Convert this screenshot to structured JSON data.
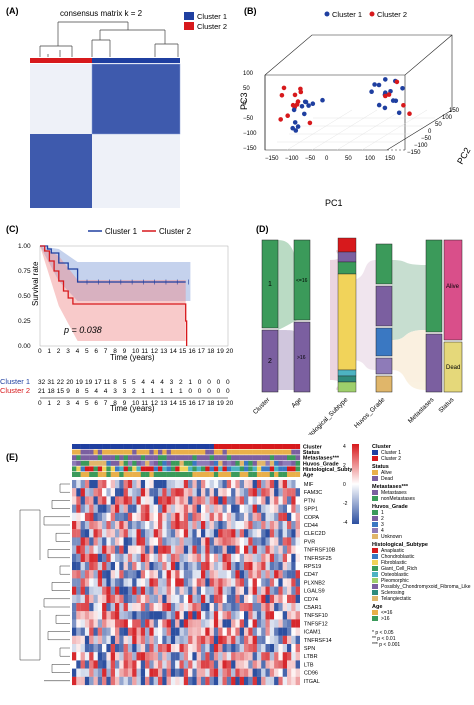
{
  "panels": {
    "a": {
      "letter": "(A)",
      "title": "consensus matrix k = 2",
      "legend": [
        "Cluster 1",
        "Cluster 2"
      ]
    },
    "b": {
      "letter": "(B)",
      "legend": [
        "Cluster 1",
        "Cluster 2"
      ],
      "axes": {
        "pc1": "PC1",
        "pc2": "PC2",
        "pc3": "PC3"
      },
      "pc1_ticks": [
        "−150",
        "−100",
        "−50",
        "0",
        "50",
        "100",
        "150"
      ],
      "pc2_ticks": [
        "−150",
        "−100",
        "−50",
        "0",
        "50",
        "100",
        "150"
      ],
      "pc3_ticks": [
        "−150",
        "−100",
        "−50",
        "0",
        "50",
        "100"
      ]
    },
    "c": {
      "letter": "(C)",
      "legend": [
        "Cluster 1",
        "Cluster 2"
      ],
      "pvalue_label": "p = 0.038",
      "ylabel": "Survival rate",
      "xlabel": "Time (years)",
      "yticks": [
        "0.00",
        "0.25",
        "0.50",
        "0.75",
        "1.00"
      ],
      "xticks": [
        "0",
        "1",
        "2",
        "3",
        "4",
        "5",
        "6",
        "7",
        "8",
        "9",
        "10",
        "11",
        "12",
        "13",
        "14",
        "15",
        "16",
        "17",
        "18",
        "19",
        "20"
      ],
      "risk_table": {
        "row_labels": [
          "Cluster 1",
          "Cluster 2"
        ],
        "cluster1": [
          "32",
          "31",
          "22",
          "20",
          "19",
          "19",
          "17",
          "11",
          "8",
          "5",
          "5",
          "4",
          "4",
          "4",
          "3",
          "2",
          "1",
          "0",
          "0",
          "0",
          "0"
        ],
        "cluster2": [
          "21",
          "18",
          "15",
          "9",
          "8",
          "5",
          "4",
          "4",
          "3",
          "3",
          "2",
          "1",
          "1",
          "1",
          "1",
          "1",
          "0",
          "0",
          "0",
          "0",
          "0"
        ],
        "xlabel": "Time (years)"
      }
    },
    "d": {
      "letter": "(D)",
      "axes": [
        "Cluster",
        "Age",
        "Histological_Subtype",
        "Huvos_Grade",
        "Metastases",
        "Status"
      ],
      "cluster_labels": [
        "1",
        "2"
      ],
      "age_labels": [
        "<=16",
        ">16"
      ],
      "status_labels": [
        "Alive",
        "Dead"
      ]
    },
    "e": {
      "letter": "(E)",
      "annotation_rows": [
        "Cluster",
        "Status",
        "Metastases***",
        "Huvos_Grade",
        "Histological_Subty",
        "Age"
      ],
      "genes": [
        "MIF",
        "FAM3C",
        "PTN",
        "SPP1",
        "COPA",
        "CD44",
        "CLEC2D",
        "PVR",
        "TNFRSF10B",
        "TNFRSF25",
        "RPS19",
        "CD47",
        "PLXNB2",
        "LGALS9",
        "CD74",
        "C5AR1",
        "TNFSF10",
        "TNFSF12",
        "ICAM1",
        "TNFRSF14",
        "SPN",
        "LTBR",
        "LTB",
        "CD96",
        "ITGAL"
      ],
      "colorbar": [
        "4",
        "2",
        "0",
        "-2",
        "-4"
      ],
      "legend": {
        "cluster_title": "Cluster",
        "cluster_items": [
          "Cluster 1",
          "Cluster 2"
        ],
        "status_title": "Status",
        "status_items": [
          "Alive",
          "Dead"
        ],
        "metastases_title": "Metastases***",
        "metastases_items": [
          "Metastases",
          "nonMetastases"
        ],
        "huvos_title": "Huvos_Grade",
        "huvos_items": [
          "1",
          "2",
          "3",
          "4",
          "Unknown"
        ],
        "hist_title": "Histological_Subtype",
        "hist_items": [
          "Anaplastic",
          "Chondroblastic",
          "Fibroblastic",
          "Giant_Cell_Rich",
          "Osteoblastic",
          "Pleomorphic",
          "Possibly_Chondromyxoid_Fibroma_Like",
          "Sclerosing",
          "Telangiectatic"
        ],
        "age_title": "Age",
        "age_items": [
          "<=16",
          ">16"
        ],
        "sig": [
          "*   p < 0.05",
          "**   p < 0.01",
          "***   p < 0.001"
        ]
      }
    }
  },
  "colors": {
    "cluster1": "#1f3fa0",
    "cluster2": "#d7191c",
    "heat_high": "#d7191c",
    "heat_low": "#2c4fa0"
  },
  "chart_data": [
    {
      "type": "scatter",
      "panel": "B",
      "series": [
        {
          "name": "Cluster 1"
        },
        {
          "name": "Cluster 2"
        }
      ],
      "xlabel": "PC1",
      "ylabel": "PC2",
      "zlabel": "PC3",
      "xlim": [
        -150,
        150
      ],
      "ylim": [
        -150,
        150
      ],
      "zlim": [
        -150,
        100
      ]
    },
    {
      "type": "line",
      "panel": "C",
      "xlabel": "Time (years)",
      "ylabel": "Survival rate",
      "xlim": [
        0,
        20
      ],
      "ylim": [
        0,
        1
      ],
      "series": [
        {
          "name": "Cluster 1",
          "x": [
            0,
            0.8,
            1.2,
            2.0,
            3.0,
            4.0,
            7.5,
            15.5
          ],
          "y": [
            1.0,
            0.97,
            0.93,
            0.83,
            0.77,
            0.64,
            0.64,
            0.64
          ]
        },
        {
          "name": "Cluster 2",
          "x": [
            0,
            0.5,
            1.0,
            1.5,
            2.0,
            2.5,
            3.0,
            3.5,
            9.0,
            15.5,
            15.6
          ],
          "y": [
            1.0,
            0.95,
            0.85,
            0.75,
            0.65,
            0.55,
            0.48,
            0.42,
            0.42,
            0.25,
            0.0
          ]
        }
      ]
    }
  ]
}
